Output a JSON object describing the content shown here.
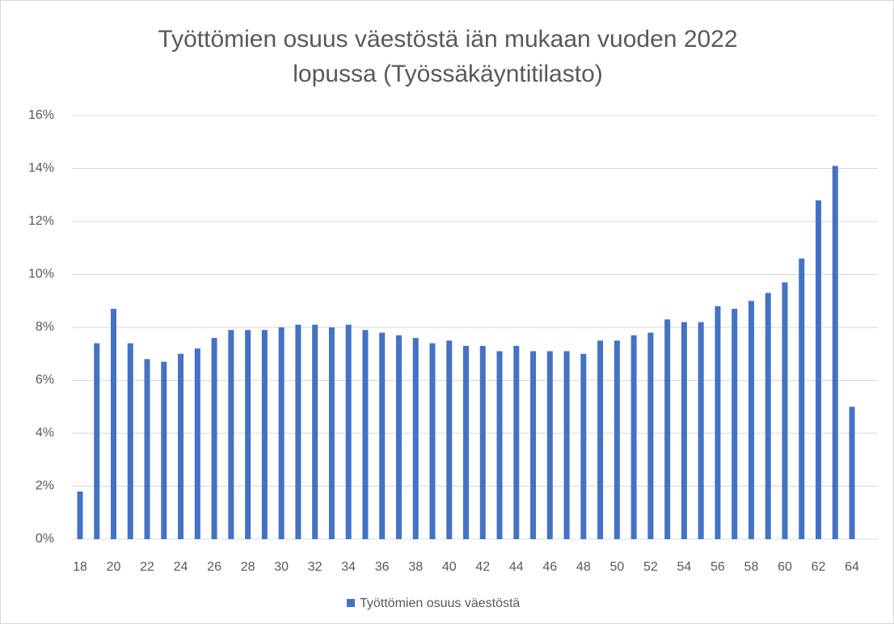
{
  "chart_data": {
    "type": "bar",
    "title": "Työttömien osuus väestöstä iän mukaan vuoden 2022 lopussa (Työssäkäyntitilasto)",
    "categories": [
      "18",
      null,
      "20",
      null,
      "22",
      null,
      "24",
      null,
      "26",
      null,
      "28",
      null,
      "30",
      null,
      "32",
      null,
      "34",
      null,
      "36",
      null,
      "38",
      null,
      "40",
      null,
      "42",
      null,
      "44",
      null,
      "46",
      null,
      "48",
      null,
      "50",
      null,
      "52",
      null,
      "54",
      null,
      "56",
      null,
      "58",
      null,
      "60",
      null,
      "62",
      null,
      "64"
    ],
    "series": [
      {
        "name": "Työttömien osuus väestöstä",
        "color": "#4472c4",
        "values": [
          1.8,
          7.4,
          8.7,
          7.4,
          6.8,
          6.7,
          7.0,
          7.2,
          7.6,
          7.9,
          7.9,
          7.9,
          8.0,
          8.1,
          8.1,
          8.0,
          8.1,
          7.9,
          7.8,
          7.7,
          7.6,
          7.4,
          7.5,
          7.3,
          7.3,
          7.1,
          7.3,
          7.1,
          7.1,
          7.1,
          7.0,
          7.5,
          7.5,
          7.7,
          7.8,
          8.3,
          8.2,
          8.2,
          8.8,
          8.7,
          9.0,
          9.3,
          9.7,
          10.6,
          12.8,
          14.1,
          5.0
        ]
      }
    ],
    "ylim": [
      0,
      16
    ],
    "yticks": [
      {
        "value": 0,
        "label": "0%"
      },
      {
        "value": 2,
        "label": "2%"
      },
      {
        "value": 4,
        "label": "4%"
      },
      {
        "value": 6,
        "label": "6%"
      },
      {
        "value": 8,
        "label": "8%"
      },
      {
        "value": 10,
        "label": "10%"
      },
      {
        "value": 12,
        "label": "12%"
      },
      {
        "value": 14,
        "label": "14%"
      },
      {
        "value": 16,
        "label": "16%"
      }
    ],
    "grid": true,
    "legend": "bottom"
  }
}
